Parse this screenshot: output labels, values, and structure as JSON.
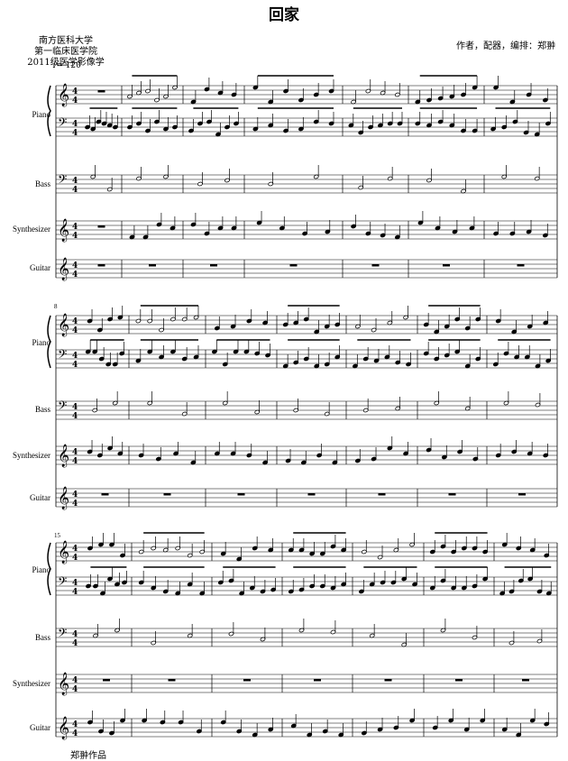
{
  "title": "回家",
  "info": {
    "lines": [
      "南方医科大学",
      "第一临床医学院",
      "2011级医学影像学"
    ]
  },
  "credits": "作者，配器，编排：郑翀",
  "tempo": "♩= 120",
  "footer": "郑翀作品",
  "instruments": [
    "Piano",
    "Bass",
    "Synthesizer",
    "Guitar"
  ],
  "measure_numbers": [
    "8",
    "15"
  ],
  "time_signature": "4/4"
}
